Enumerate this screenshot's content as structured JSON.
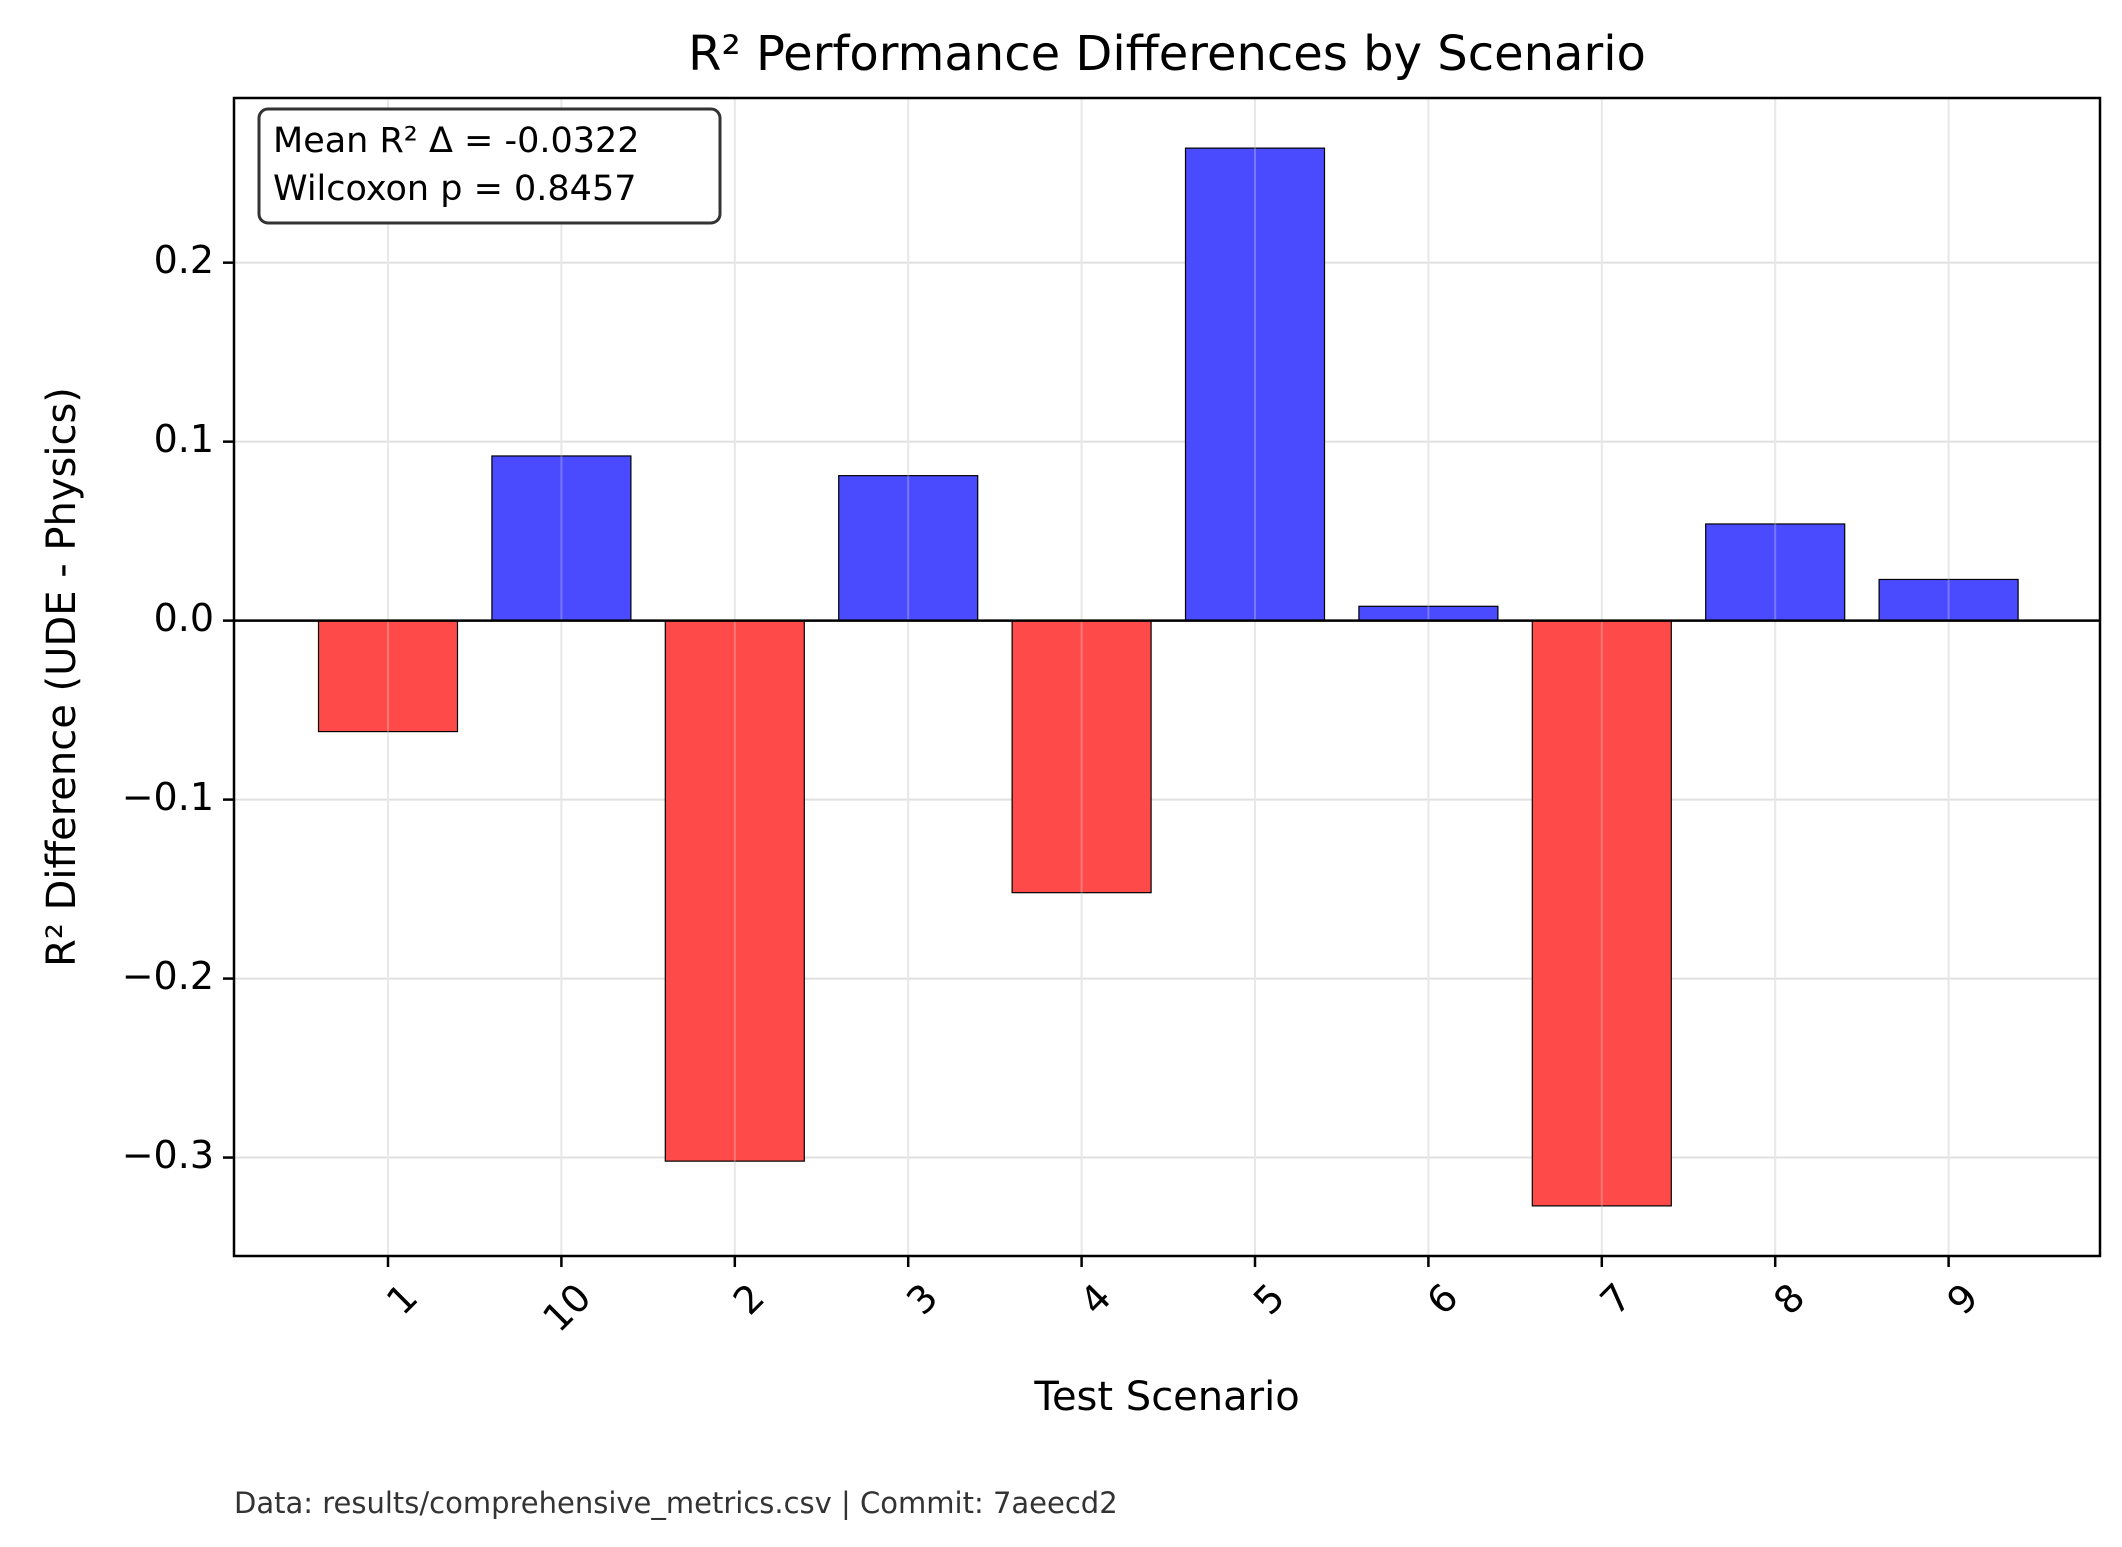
{
  "chart_data": {
    "type": "bar",
    "title": "R² Performance Differences by Scenario",
    "xlabel": "Test Scenario",
    "ylabel": "R² Difference (UDE - Physics)",
    "categories": [
      "1",
      "10",
      "2",
      "3",
      "4",
      "5",
      "6",
      "7",
      "8",
      "9"
    ],
    "values": [
      -0.062,
      0.092,
      -0.302,
      0.081,
      -0.152,
      0.264,
      0.008,
      -0.327,
      0.054,
      0.023
    ],
    "ylim": [
      -0.355,
      0.292
    ],
    "yticks": [
      0.2,
      0.1,
      0.0,
      -0.1,
      -0.2,
      -0.3
    ],
    "ytick_labels": [
      "0.2",
      "0.1",
      "0.0",
      "−0.1",
      "−0.2",
      "−0.3"
    ],
    "grid": true,
    "zero_line": true,
    "colors": {
      "positive": "#4a4aff",
      "negative": "#ff4a4a",
      "edge": "#000000",
      "grid": "#e0e0e0"
    }
  },
  "stats_box": {
    "line1": "Mean R² Δ = -0.0322",
    "line2": "Wilcoxon p = 0.8457"
  },
  "footer": "Data: results/comprehensive_metrics.csv | Commit: 7aeecd2"
}
